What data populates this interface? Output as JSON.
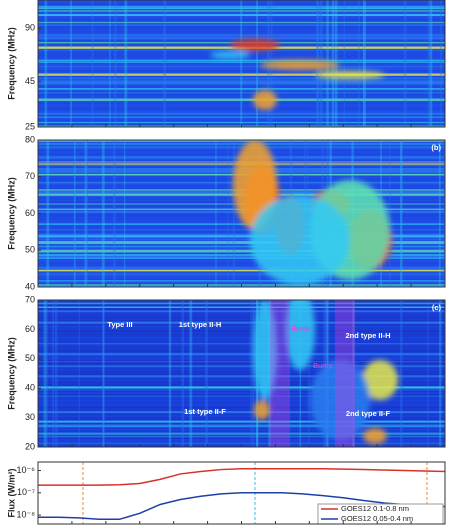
{
  "chart_data": [
    {
      "type": "spectrogram",
      "ylabel": "Frequency (MHz)",
      "log_scale": true,
      "ylim": [
        25,
        130
      ],
      "yticks": [
        25,
        45,
        90
      ]
    },
    {
      "type": "spectrogram",
      "panel_label": "(b)",
      "ylabel": "Frequency (MHz)",
      "ylim": [
        40,
        80
      ],
      "yticks": [
        40,
        50,
        60,
        70,
        80
      ]
    },
    {
      "type": "spectrogram",
      "panel_label": "(c)",
      "ylabel": "Frequency (MHz)",
      "ylim": [
        20,
        70
      ],
      "yticks": [
        20,
        30,
        40,
        50,
        60,
        70
      ],
      "annotations": [
        "Type III",
        "1st type II-H",
        "1st type II-F",
        "2nd type II-H",
        "2nd type II-F",
        "Break",
        "Bump"
      ]
    },
    {
      "type": "line",
      "ylabel": "Flux (W/m²)",
      "log_scale": true,
      "ylim": [
        4e-09,
        2.4e-06
      ],
      "yticks": [
        {
          "value": 1e-08,
          "label": "10⁻⁸"
        },
        {
          "value": 1e-07,
          "label": "10⁻⁷"
        },
        {
          "value": 1e-06,
          "label": "10⁻⁶"
        }
      ],
      "categories": [
        null,
        null,
        null,
        null,
        null,
        null,
        null,
        null,
        null,
        null,
        null,
        null,
        null,
        null,
        null,
        null,
        null,
        null,
        null,
        null,
        null
      ],
      "series": [
        {
          "name": "GOES12 0.1-0.8 nm",
          "color": "#d9302a",
          "values": [
            2.2e-07,
            2.2e-07,
            2.2e-07,
            2.2e-07,
            2.3e-07,
            2.6e-07,
            4e-07,
            7e-07,
            9e-07,
            1.1e-06,
            1.2e-06,
            1.2e-06,
            1.2e-06,
            1.2e-06,
            1.2e-06,
            1.15e-06,
            1.1e-06,
            1.05e-06,
            1e-06,
            9.5e-07,
            9e-07
          ]
        },
        {
          "name": "GOES12 0.05-0.4 nm",
          "color": "#1f3fa8",
          "values": [
            8e-09,
            8e-09,
            7.5e-09,
            6.5e-09,
            6.5e-09,
            1.2e-08,
            3e-08,
            5e-08,
            7e-08,
            9e-08,
            1e-07,
            1e-07,
            1e-07,
            9e-08,
            7.5e-08,
            6e-08,
            4.5e-08,
            3.5e-08,
            3e-08,
            2.7e-08,
            2.4e-08
          ]
        }
      ]
    }
  ]
}
